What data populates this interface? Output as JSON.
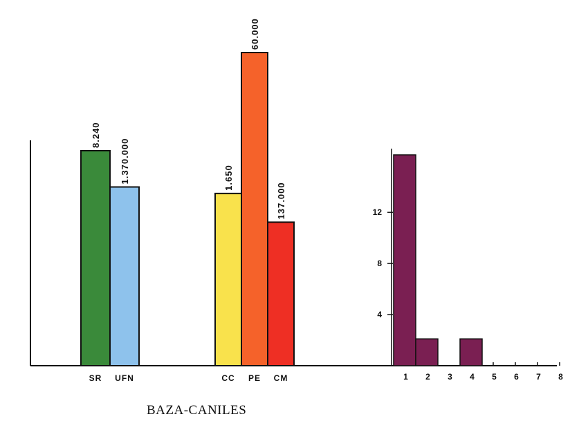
{
  "caption": "BAZA-CANILES",
  "chart_data": [
    {
      "type": "bar",
      "categories": [
        "SR",
        "UFN"
      ],
      "values": [
        8.24,
        6.85
      ],
      "value_labels": [
        "8.240",
        "1.370.000"
      ],
      "colors": [
        "#3a8a3a",
        "#8ec2ec"
      ],
      "ylim": [
        0,
        11.5
      ],
      "xlabel": "",
      "ylabel": ""
    },
    {
      "type": "bar",
      "categories": [
        "CC",
        "PE",
        "CM"
      ],
      "values": [
        6.6,
        12.0,
        5.5
      ],
      "value_labels": [
        "1.650",
        "60.000",
        "137.000"
      ],
      "colors": [
        "#f9e24c",
        "#f5622a",
        "#ee2f24"
      ],
      "ylim": [
        0,
        12.5
      ],
      "xlabel": "",
      "ylabel": ""
    },
    {
      "type": "bar",
      "categories": [
        "1",
        "2",
        "3",
        "4",
        "5",
        "6",
        "7",
        "8"
      ],
      "values": [
        16.5,
        2.1,
        0,
        2.1,
        0,
        0,
        0,
        0
      ],
      "yticks": [
        4,
        8,
        12
      ],
      "colors": [
        "#7a1f52"
      ],
      "ylim": [
        0,
        16.8
      ],
      "xlabel": "",
      "ylabel": ""
    }
  ]
}
